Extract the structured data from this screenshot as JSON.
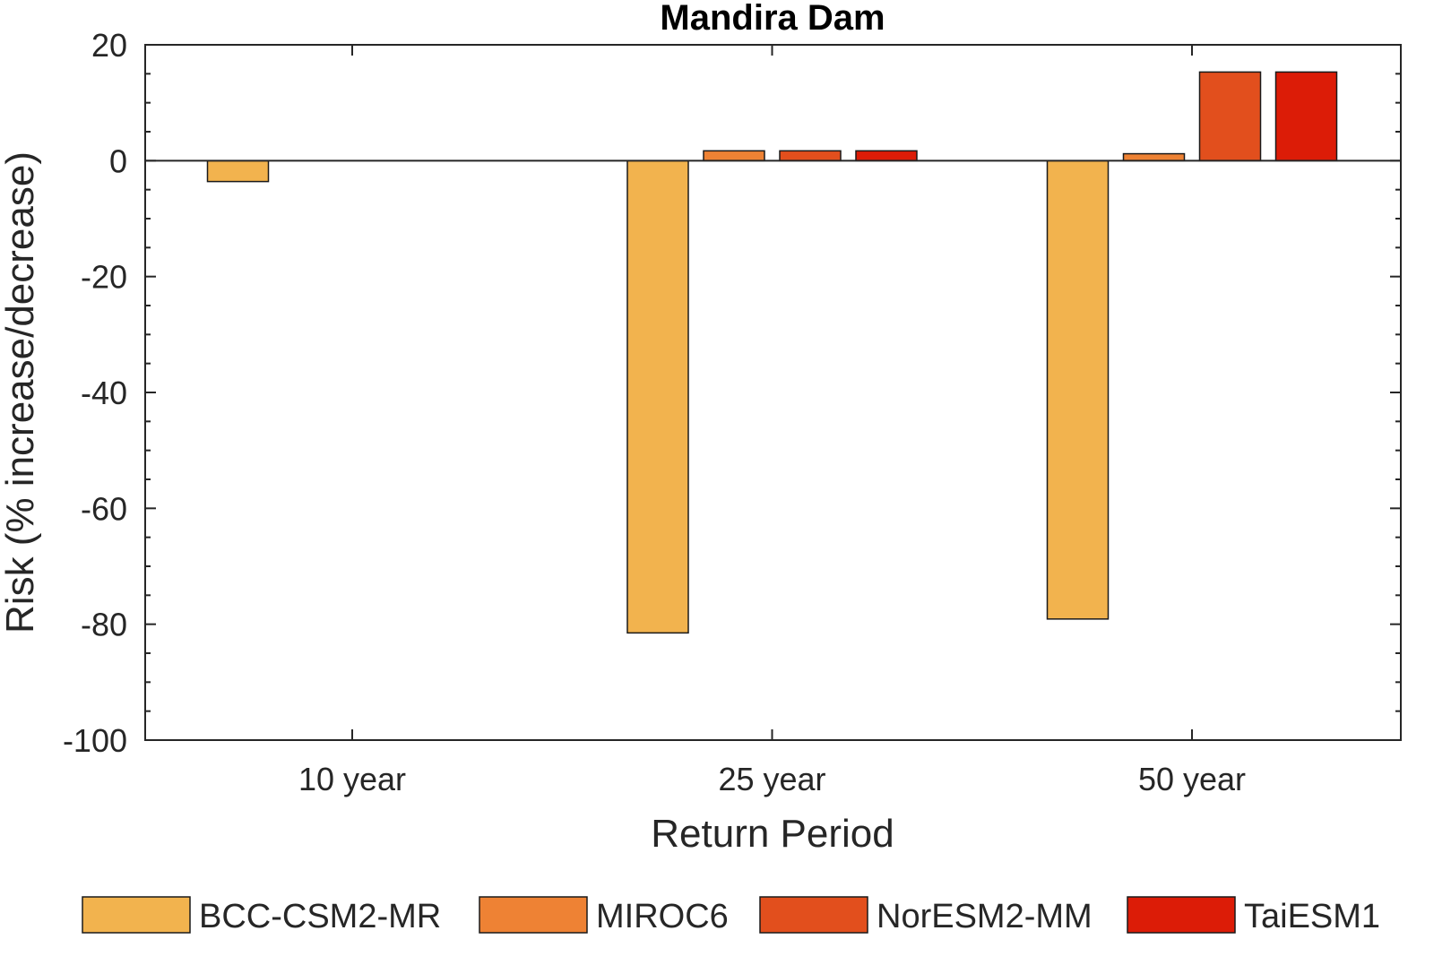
{
  "chart_data": {
    "type": "bar",
    "title": "Mandira Dam",
    "xlabel": "Return Period",
    "ylabel": "Risk (% increase/decrease)",
    "categories": [
      "10 year",
      "25 year",
      "50 year"
    ],
    "ylim": [
      -100,
      20
    ],
    "yticks": [
      "20",
      "0",
      "-20",
      "-40",
      "-60",
      "-80",
      "-100"
    ],
    "ytick_values": [
      20,
      0,
      -20,
      -40,
      -60,
      -80,
      -100
    ],
    "grid": false,
    "legend_position": "bottom",
    "series": [
      {
        "name": "BCC-CSM2-MR",
        "color": "#F2B34E",
        "values": [
          -3.6,
          -81.5,
          -79.1
        ]
      },
      {
        "name": "MIROC6",
        "color": "#EE8234",
        "values": [
          0,
          1.7,
          1.2
        ]
      },
      {
        "name": "NorESM2-MM",
        "color": "#E24F1D",
        "values": [
          0,
          1.7,
          15.3
        ]
      },
      {
        "name": "TaiESM1",
        "color": "#DC1C07",
        "values": [
          0,
          1.7,
          15.3
        ]
      }
    ]
  }
}
